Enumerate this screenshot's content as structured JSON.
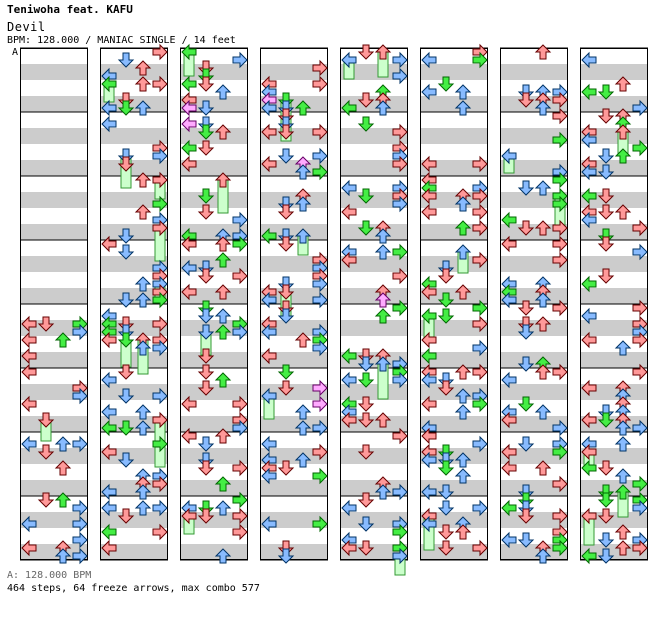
{
  "header": {
    "artist": "Teniwoha feat. KAFU",
    "title": "Devil",
    "meta": "BPM: 128.000 / MANIAC SINGLE / 14 feet"
  },
  "section_marker": "A",
  "footer": {
    "bpm_line": "A: 128.000 BPM",
    "stats_line": "464 steps, 64 freeze arrows, max combo 577"
  },
  "colors": {
    "quarter": "#ff9999",
    "eighth": "#88bbff",
    "sixteenth": "#44ee44",
    "other": "#ffaaff",
    "freeze": "#ccffcc",
    "stripe": "#cccccc"
  },
  "chart_data": {
    "type": "step_chart",
    "column_count": 8,
    "measures_per_column": 8,
    "lanes": [
      "left",
      "down",
      "up",
      "right"
    ],
    "total_steps": 464,
    "freeze_arrows": 64,
    "max_combo": 577,
    "bpm": 128.0
  }
}
